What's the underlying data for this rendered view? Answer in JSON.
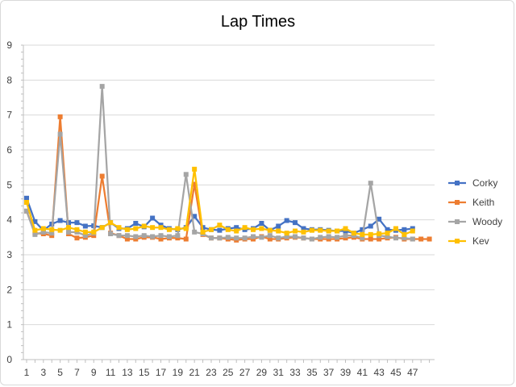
{
  "chart_data": {
    "type": "line",
    "title": "Lap Times",
    "xlabel": "",
    "ylabel": "",
    "ylim": [
      0,
      9
    ],
    "yticks": [
      0,
      1,
      2,
      3,
      4,
      5,
      6,
      7,
      8,
      9
    ],
    "x_tick_labels": [
      "1",
      "3",
      "5",
      "7",
      "9",
      "11",
      "13",
      "15",
      "17",
      "19",
      "21",
      "23",
      "25",
      "27",
      "29",
      "31",
      "33",
      "35",
      "37",
      "39",
      "41",
      "43",
      "45",
      "47"
    ],
    "x": [
      1,
      2,
      3,
      4,
      5,
      6,
      7,
      8,
      9,
      10,
      11,
      12,
      13,
      14,
      15,
      16,
      17,
      18,
      19,
      20,
      21,
      22,
      23,
      24,
      25,
      26,
      27,
      28,
      29,
      30,
      31,
      32,
      33,
      34,
      35,
      36,
      37,
      38,
      39,
      40,
      41,
      42,
      43,
      44,
      45,
      46,
      47,
      48,
      49
    ],
    "grid": true,
    "legend_position": "right",
    "series": [
      {
        "name": "Corky",
        "color": "#4472c4",
        "marker": "square",
        "values": [
          4.62,
          3.95,
          3.7,
          3.88,
          3.98,
          3.92,
          3.92,
          3.82,
          3.83,
          3.78,
          3.92,
          3.75,
          3.75,
          3.9,
          3.8,
          4.05,
          3.85,
          3.75,
          3.72,
          3.78,
          4.1,
          3.78,
          3.72,
          3.7,
          3.75,
          3.78,
          3.72,
          3.75,
          3.9,
          3.7,
          3.82,
          3.98,
          3.92,
          3.75,
          3.72,
          3.72,
          3.7,
          3.68,
          3.68,
          3.62,
          3.72,
          3.82,
          4.02,
          3.72,
          3.7,
          3.72,
          3.75,
          null,
          null
        ]
      },
      {
        "name": "Keith",
        "color": "#ed7d31",
        "marker": "square",
        "values": [
          4.25,
          3.62,
          3.6,
          3.55,
          6.95,
          3.6,
          3.48,
          3.5,
          3.55,
          5.25,
          3.62,
          3.55,
          3.45,
          3.45,
          3.5,
          3.5,
          3.45,
          3.48,
          3.48,
          3.45,
          5.02,
          3.58,
          3.48,
          3.48,
          3.45,
          3.42,
          3.45,
          3.45,
          3.52,
          3.45,
          3.45,
          3.48,
          3.5,
          3.48,
          3.45,
          3.45,
          3.45,
          3.45,
          3.48,
          3.5,
          3.45,
          3.45,
          3.45,
          3.48,
          3.5,
          3.45,
          3.45,
          3.45,
          3.45
        ]
      },
      {
        "name": "Woody",
        "color": "#a5a5a5",
        "marker": "square",
        "values": [
          4.25,
          3.58,
          3.65,
          3.62,
          6.45,
          3.65,
          3.65,
          3.55,
          3.62,
          7.82,
          3.6,
          3.55,
          3.55,
          3.52,
          3.55,
          3.52,
          3.55,
          3.52,
          3.55,
          5.3,
          3.65,
          3.6,
          3.48,
          3.48,
          3.5,
          3.48,
          3.48,
          3.52,
          3.5,
          3.55,
          3.48,
          3.52,
          3.52,
          3.48,
          3.45,
          3.5,
          3.52,
          3.5,
          3.55,
          3.55,
          3.48,
          5.05,
          3.55,
          3.52,
          3.48,
          3.48,
          3.45,
          null,
          null
        ]
      },
      {
        "name": "Kev",
        "color": "#ffc000",
        "marker": "square",
        "values": [
          4.5,
          3.7,
          3.75,
          3.72,
          3.7,
          3.78,
          3.72,
          3.65,
          3.65,
          3.78,
          3.92,
          3.78,
          3.72,
          3.75,
          3.82,
          3.78,
          3.78,
          3.72,
          3.75,
          3.75,
          5.45,
          3.65,
          3.72,
          3.85,
          3.72,
          3.68,
          3.78,
          3.72,
          3.75,
          3.7,
          3.68,
          3.62,
          3.68,
          3.65,
          3.7,
          3.7,
          3.68,
          3.68,
          3.75,
          3.62,
          3.58,
          3.58,
          3.6,
          3.62,
          3.75,
          3.58,
          3.68,
          null,
          null
        ]
      }
    ]
  }
}
